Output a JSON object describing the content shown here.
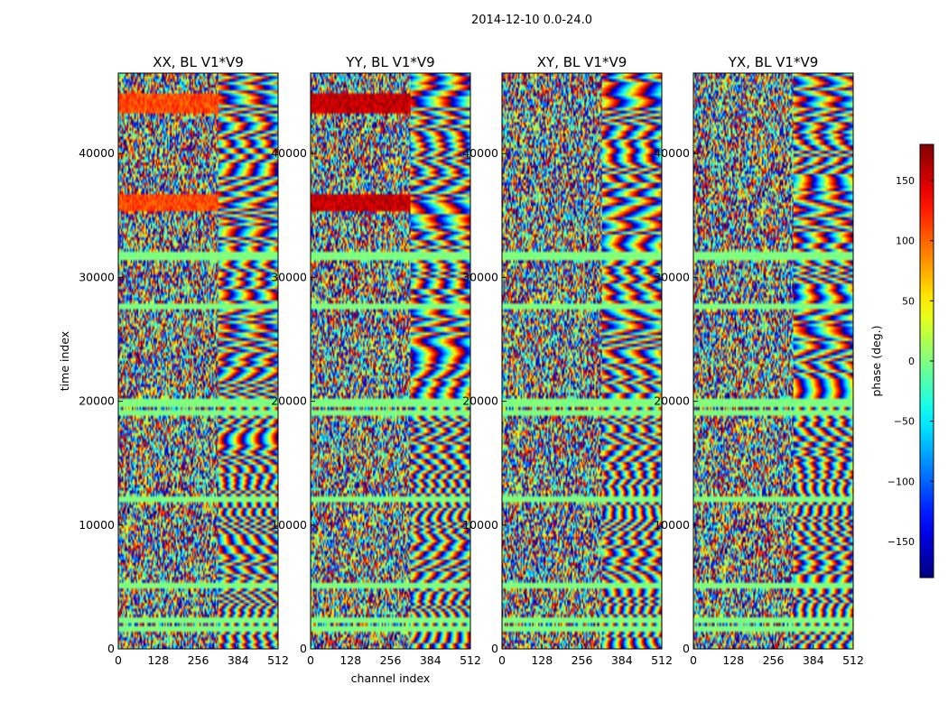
{
  "suptitle": "2014-12-10 0.0-24.0",
  "chart_data": [
    {
      "type": "heatmap",
      "title": "XX, BL V1*V9",
      "xlabel": "",
      "ylabel": "time index",
      "xlim": [
        0,
        512
      ],
      "ylim": [
        0,
        46500
      ],
      "xticks": [
        0,
        128,
        256,
        384,
        512
      ],
      "yticks": [
        0,
        10000,
        20000,
        30000,
        40000
      ],
      "value_range": [
        -180,
        180
      ],
      "colormap": "jet",
      "high_phase_bands_ylim": [
        [
          35300,
          36700
        ],
        [
          43300,
          44900
        ]
      ]
    },
    {
      "type": "heatmap",
      "title": "YY, BL V1*V9",
      "xlabel": "channel index",
      "ylabel": "",
      "xlim": [
        0,
        512
      ],
      "ylim": [
        0,
        46500
      ],
      "xticks": [
        0,
        128,
        256,
        384,
        512
      ],
      "yticks": [
        0,
        10000,
        20000,
        30000,
        40000
      ],
      "value_range": [
        -180,
        180
      ],
      "colormap": "jet",
      "high_phase_bands_ylim": [
        [
          35300,
          36700
        ],
        [
          43300,
          44900
        ]
      ]
    },
    {
      "type": "heatmap",
      "title": "XY, BL V1*V9",
      "xlabel": "",
      "ylabel": "",
      "xlim": [
        0,
        512
      ],
      "ylim": [
        0,
        46500
      ],
      "xticks": [
        0,
        128,
        256,
        384,
        512
      ],
      "yticks": [
        0,
        10000,
        20000,
        30000,
        40000
      ],
      "value_range": [
        -180,
        180
      ],
      "colormap": "jet"
    },
    {
      "type": "heatmap",
      "title": "YX, BL V1*V9",
      "xlabel": "",
      "ylabel": "",
      "xlim": [
        0,
        512
      ],
      "ylim": [
        0,
        46500
      ],
      "xticks": [
        0,
        128,
        256,
        384,
        512
      ],
      "yticks": [
        0,
        10000,
        20000,
        30000,
        40000
      ],
      "value_range": [
        -180,
        180
      ],
      "colormap": "jet"
    }
  ],
  "colorbar": {
    "label": "phase (deg.)",
    "range": [
      -180,
      180
    ],
    "ticks": [
      150,
      100,
      50,
      0,
      -50,
      -100,
      -150
    ],
    "tick_labels": [
      "150",
      "100",
      "50",
      "0",
      "−50",
      "−100",
      "−150"
    ]
  },
  "zero_phase_bands_ylim": [
    [
      1400,
      1800
    ],
    [
      2200,
      2600
    ],
    [
      4900,
      5300
    ],
    [
      11900,
      12300
    ],
    [
      18800,
      19400
    ],
    [
      19600,
      20200
    ],
    [
      27500,
      27800
    ],
    [
      31500,
      32200
    ]
  ]
}
